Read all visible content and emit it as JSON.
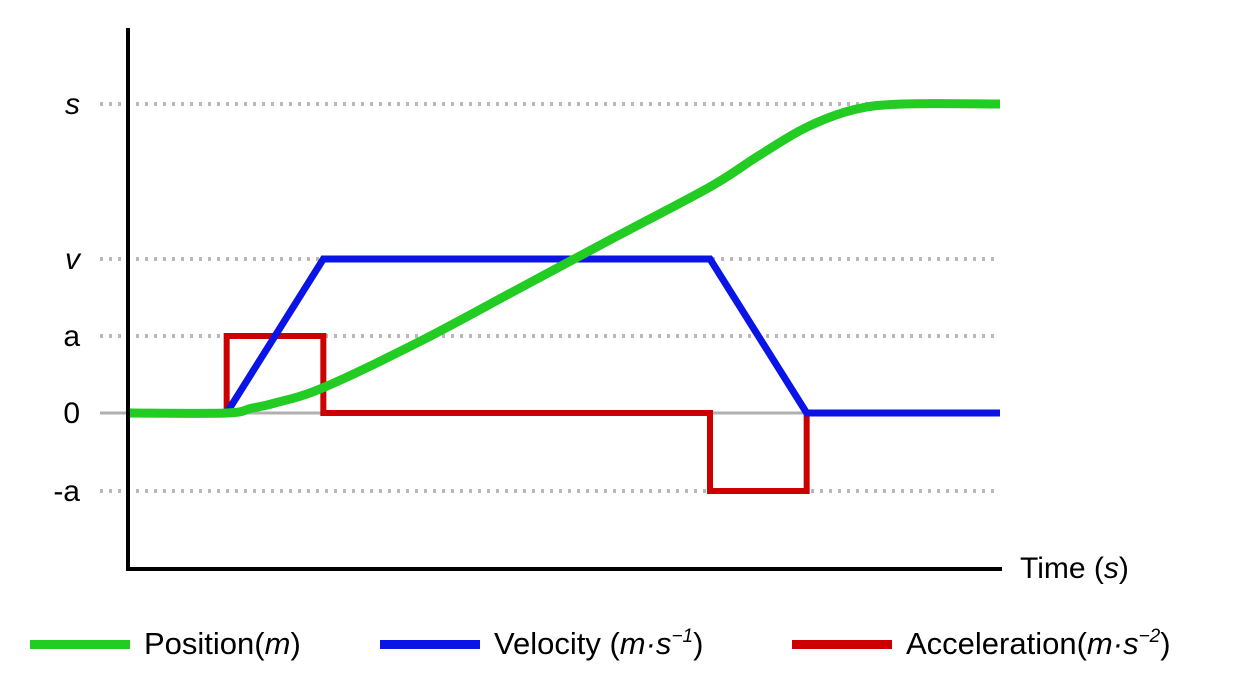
{
  "chart_data": {
    "type": "line",
    "title": "",
    "xlabel": "Time",
    "xlabel_unit": "s",
    "ylabel": "",
    "x": [
      0,
      1,
      2,
      3,
      4,
      5,
      6,
      7,
      8,
      9
    ],
    "x_ticks_shown": false,
    "y_tick_labels": [
      {
        "label": "s",
        "italic": true,
        "value": 4
      },
      {
        "label": "v",
        "italic": true,
        "value": 2
      },
      {
        "label": "a",
        "italic": false,
        "value": 1
      },
      {
        "label": "0",
        "italic": false,
        "value": 0
      },
      {
        "label": "-a",
        "italic": false,
        "value": -1
      }
    ],
    "ylim": [
      -2,
      5
    ],
    "xlim": [
      0,
      9
    ],
    "grid": "dotted horizontal at labelled levels",
    "legend_position": "bottom",
    "series": [
      {
        "name": "Position",
        "unit_base": "m",
        "unit_exp": "",
        "color": "#22cc22",
        "points": [
          [
            0,
            0
          ],
          [
            1,
            0
          ],
          [
            1.25,
            0.06
          ],
          [
            1.5,
            0.13
          ],
          [
            2,
            0.33
          ],
          [
            3,
            0.93
          ],
          [
            4,
            1.6
          ],
          [
            5,
            2.27
          ],
          [
            6,
            2.93
          ],
          [
            6.5,
            3.33
          ],
          [
            7,
            3.7
          ],
          [
            7.5,
            3.93
          ],
          [
            8,
            4
          ],
          [
            9,
            4
          ]
        ]
      },
      {
        "name": "Velocity",
        "unit_base": "m·s",
        "unit_exp": "−1",
        "color": "#0a14e6",
        "points": [
          [
            0,
            0
          ],
          [
            1,
            0
          ],
          [
            2,
            2
          ],
          [
            6,
            2
          ],
          [
            7,
            0
          ],
          [
            9,
            0
          ]
        ]
      },
      {
        "name": "Acceleration",
        "unit_base": "m·s",
        "unit_exp": "−2",
        "color": "#cc0000",
        "points": [
          [
            0,
            0
          ],
          [
            1,
            0
          ],
          [
            1,
            1
          ],
          [
            2,
            1
          ],
          [
            2,
            0
          ],
          [
            6,
            0
          ],
          [
            6,
            -1
          ],
          [
            7,
            -1
          ],
          [
            7,
            0
          ]
        ]
      }
    ],
    "legend": {
      "position_label": "Position(",
      "position_unit": "m",
      "position_close": ")",
      "velocity_label": "Velocity (",
      "velocity_unit": "m·s",
      "velocity_exp": "−1",
      "velocity_close": ")",
      "acceleration_label": "Acceleration(",
      "acceleration_unit": "m·s",
      "acceleration_exp": "−2",
      "acceleration_close": ")"
    }
  }
}
